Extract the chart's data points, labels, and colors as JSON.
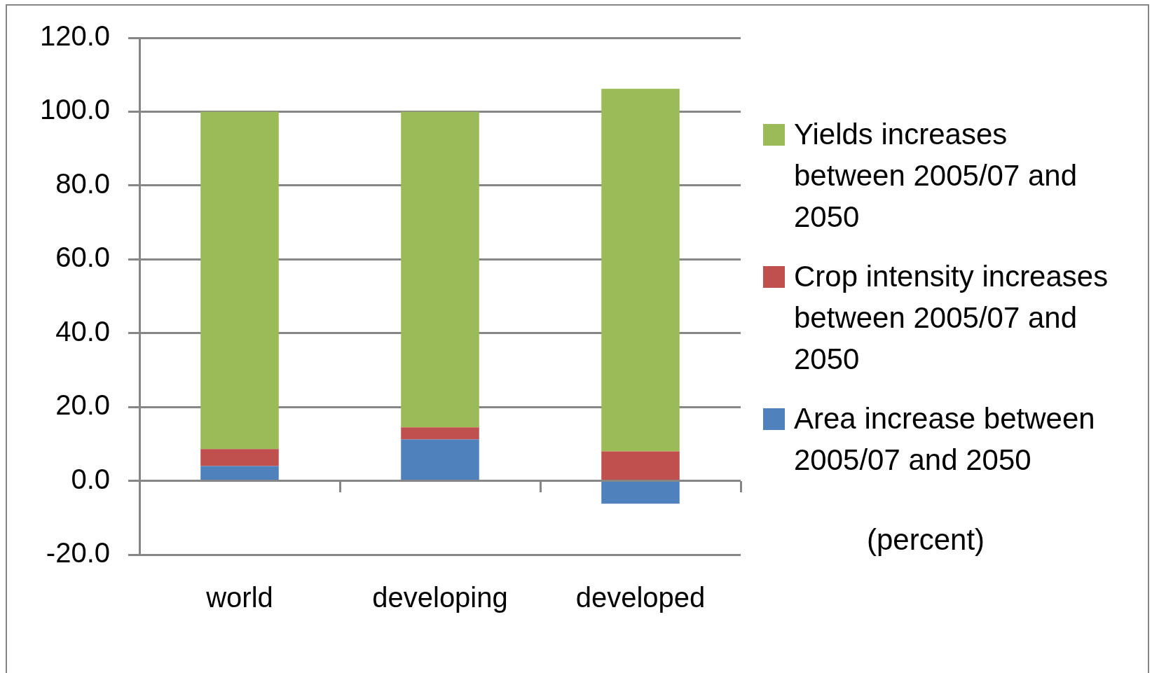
{
  "chart_data": {
    "type": "bar",
    "stacked": true,
    "categories": [
      "world",
      "developing",
      "developed"
    ],
    "series": [
      {
        "name": "Area increase between 2005/07 and 2050",
        "color": "#4f81bd",
        "values": [
          4.0,
          11.2,
          -6.2
        ]
      },
      {
        "name": "Crop intensity increases between 2005/07 and 2050",
        "color": "#c0504d",
        "values": [
          4.6,
          3.3,
          8.0
        ]
      },
      {
        "name": "Yields increases between 2005/07 and 2050",
        "color": "#9bbb59",
        "values": [
          91.4,
          85.5,
          98.2
        ]
      }
    ],
    "ylim": [
      -20,
      120
    ],
    "yticks": [
      {
        "value": -20,
        "label": "-20.0"
      },
      {
        "value": 0,
        "label": "0.0"
      },
      {
        "value": 20,
        "label": "20.0"
      },
      {
        "value": 40,
        "label": "40.0"
      },
      {
        "value": 60,
        "label": "60.0"
      },
      {
        "value": 80,
        "label": "80.0"
      },
      {
        "value": 100,
        "label": "100.0"
      },
      {
        "value": 120,
        "label": "120.0"
      }
    ],
    "grid": "y",
    "legend": "right",
    "annotations": [
      "(percent)"
    ]
  }
}
